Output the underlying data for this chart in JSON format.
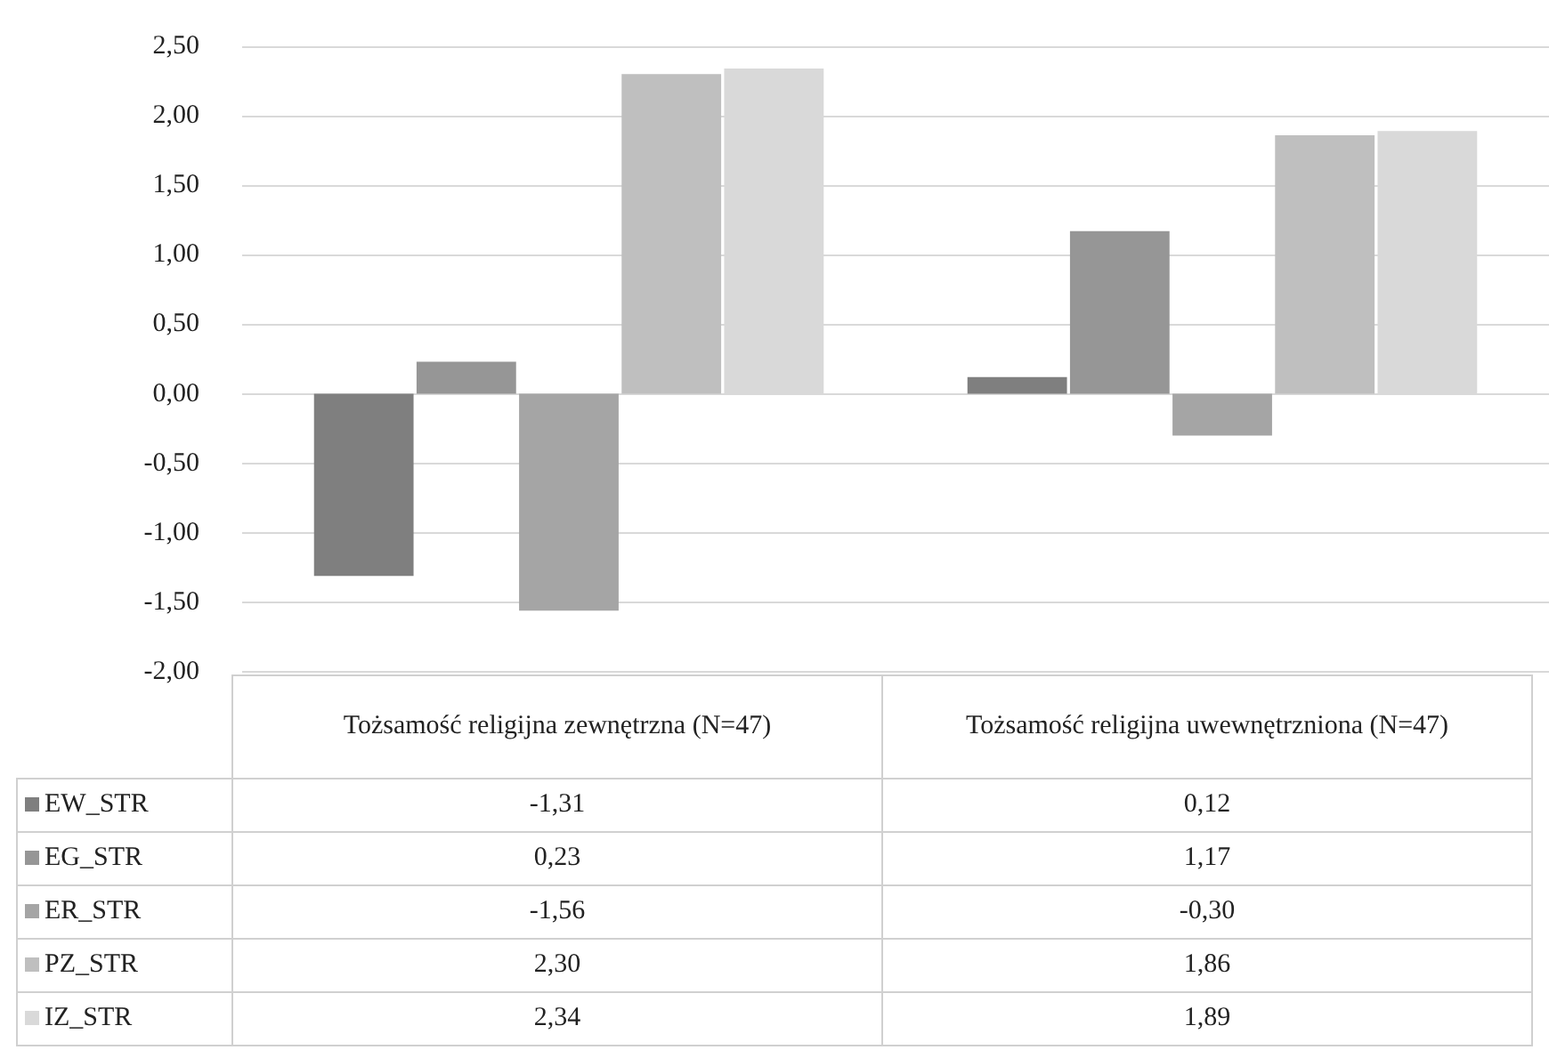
{
  "chart_data": {
    "type": "bar",
    "categories": [
      "Tożsamość religijna zewnętrzna (N=47)",
      "Tożsamość religijna uwewnętrzniona (N=47)"
    ],
    "series": [
      {
        "name": "EW_STR",
        "color": "#7f7f7f",
        "values": [
          -1.31,
          0.12
        ],
        "value_labels": [
          "-1,31",
          "0,12"
        ]
      },
      {
        "name": "EG_STR",
        "color": "#969696",
        "values": [
          0.23,
          1.17
        ],
        "value_labels": [
          "0,23",
          "1,17"
        ]
      },
      {
        "name": "ER_STR",
        "color": "#a5a5a5",
        "values": [
          -1.56,
          -0.3
        ],
        "value_labels": [
          "-1,56",
          "-0,30"
        ]
      },
      {
        "name": "PZ_STR",
        "color": "#bfbfbf",
        "values": [
          2.3,
          1.86
        ],
        "value_labels": [
          "2,30",
          "1,86"
        ]
      },
      {
        "name": "IZ_STR",
        "color": "#d9d9d9",
        "values": [
          2.34,
          1.89
        ],
        "value_labels": [
          "2,34",
          "1,89"
        ]
      }
    ],
    "ylim": [
      -2,
      2.5
    ],
    "yticks": [
      {
        "value": -2,
        "label": "-2,00"
      },
      {
        "value": -1.5,
        "label": "-1,50"
      },
      {
        "value": -1,
        "label": "-1,00"
      },
      {
        "value": -0.5,
        "label": "-0,50"
      },
      {
        "value": 0,
        "label": "0,00"
      },
      {
        "value": 0.5,
        "label": "0,50"
      },
      {
        "value": 1,
        "label": "1,00"
      },
      {
        "value": 1.5,
        "label": "1,50"
      },
      {
        "value": 2,
        "label": "2,00"
      },
      {
        "value": 2.5,
        "label": "2,50"
      }
    ],
    "grid": "y",
    "legend": "bottom left"
  }
}
